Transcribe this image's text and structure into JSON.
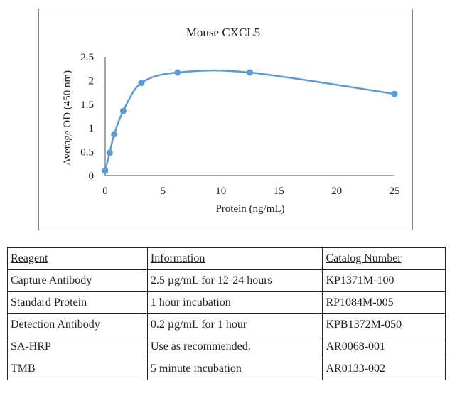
{
  "chart_data": {
    "type": "line",
    "title": "Mouse CXCL5",
    "xlabel": "Protein (ng/mL)",
    "ylabel": "Average OD (450 nm)",
    "xlim": [
      0,
      25
    ],
    "ylim": [
      0,
      2.5
    ],
    "xticks": [
      "0",
      "5",
      "10",
      "15",
      "20",
      "25"
    ],
    "yticks": [
      "0",
      "0.5",
      "1",
      "1.5",
      "2",
      "2.5"
    ],
    "grid": false,
    "smoothed": true,
    "color": "#5b9bd5",
    "x": [
      0,
      0.39,
      0.78,
      1.56,
      3.125,
      6.25,
      12.5,
      25
    ],
    "y": [
      0.1,
      0.48,
      0.87,
      1.36,
      1.95,
      2.17,
      2.17,
      1.72
    ]
  },
  "table": {
    "headers": [
      "Reagent",
      "Information",
      "Catalog Number"
    ],
    "rows": [
      [
        "Capture Antibody",
        "2.5 µg/mL for 12-24 hours",
        "KP1371M-100"
      ],
      [
        "Standard Protein",
        "1 hour incubation",
        "RP1084M-005"
      ],
      [
        "Detection Antibody",
        "0.2 µg/mL for 1 hour",
        "KPB1372M-050"
      ],
      [
        "SA-HRP",
        "Use as recommended.",
        "AR0068-001"
      ],
      [
        "TMB",
        "5 minute incubation",
        "AR0133-002"
      ]
    ]
  }
}
